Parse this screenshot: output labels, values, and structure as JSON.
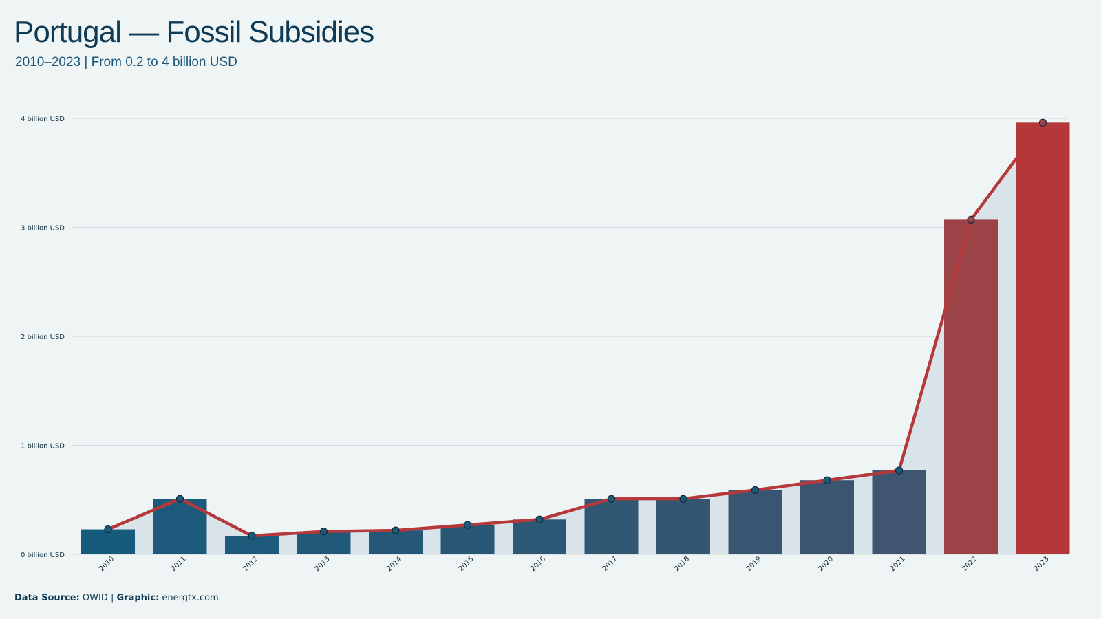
{
  "header": {
    "title": "Portugal — Fossil Subsidies",
    "subtitle": "2010–2023 | From 0.2 to 4 billion USD"
  },
  "footer": {
    "source_label": "Data Source:",
    "source_value": "OWID |",
    "graphic_label": "Graphic:",
    "graphic_value": "energtx.com"
  },
  "colors": {
    "background": "#eff5f5",
    "line": "#b5393b",
    "area": "#d6e3e9",
    "grid": "#d3dcdf",
    "point_fill": "#1d5a7a",
    "point_stroke": "#0d2a3a",
    "bar_start": "#165a7c",
    "bar_mid": "#3f5570",
    "bar_2022": "#9b4347",
    "bar_2023": "#b4373a"
  },
  "chart_data": {
    "type": "bar",
    "title": "Portugal — Fossil Subsidies",
    "subtitle": "2010–2023 | From 0.2 to 4 billion USD",
    "xlabel": "",
    "ylabel": "",
    "categories": [
      "2010",
      "2011",
      "2012",
      "2013",
      "2014",
      "2015",
      "2016",
      "2017",
      "2018",
      "2019",
      "2020",
      "2021",
      "2022",
      "2023"
    ],
    "values": [
      0.23,
      0.51,
      0.17,
      0.21,
      0.22,
      0.27,
      0.32,
      0.51,
      0.51,
      0.59,
      0.68,
      0.77,
      3.07,
      3.96
    ],
    "ylim": [
      0,
      4
    ],
    "yticks": [
      0,
      1,
      2,
      3,
      4
    ],
    "ytick_labels": [
      "0 billion USD",
      "1 billion USD",
      "2 billion USD",
      "3 billion USD",
      "4 billion USD"
    ],
    "overlay": "line with markers and shaded area following bar values",
    "grid": true,
    "legend": "none"
  }
}
